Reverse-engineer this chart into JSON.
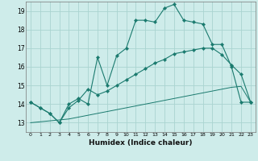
{
  "bg_color": "#ceecea",
  "grid_color": "#aad4d0",
  "line_color": "#1a7a6e",
  "xlabel": "Humidex (Indice chaleur)",
  "xlim": [
    -0.5,
    23.5
  ],
  "ylim": [
    12.5,
    19.5
  ],
  "yticks": [
    13,
    14,
    15,
    16,
    17,
    18,
    19
  ],
  "xticks": [
    0,
    1,
    2,
    3,
    4,
    5,
    6,
    7,
    8,
    9,
    10,
    11,
    12,
    13,
    14,
    15,
    16,
    17,
    18,
    19,
    20,
    21,
    22,
    23
  ],
  "series1_x": [
    0,
    1,
    2,
    3,
    4,
    5,
    6,
    7,
    8,
    9,
    10,
    11,
    12,
    13,
    14,
    15,
    16,
    17,
    18,
    19,
    20,
    21,
    22,
    23
  ],
  "series1_y": [
    14.1,
    13.8,
    13.5,
    13.0,
    14.0,
    14.3,
    14.0,
    16.5,
    15.0,
    16.6,
    17.0,
    18.5,
    18.5,
    18.4,
    19.15,
    19.35,
    18.5,
    18.4,
    18.3,
    17.2,
    17.2,
    16.0,
    14.1,
    14.1
  ],
  "series2_x": [
    0,
    1,
    2,
    3,
    4,
    5,
    6,
    7,
    8,
    9,
    10,
    11,
    12,
    13,
    14,
    15,
    16,
    17,
    18,
    19,
    20,
    21,
    22,
    23
  ],
  "series2_y": [
    14.1,
    13.8,
    13.5,
    13.0,
    13.8,
    14.2,
    14.8,
    14.5,
    14.7,
    15.0,
    15.3,
    15.6,
    15.9,
    16.2,
    16.4,
    16.7,
    16.8,
    16.9,
    17.0,
    17.0,
    16.65,
    16.1,
    15.6,
    14.1
  ],
  "series3_x": [
    0,
    1,
    2,
    3,
    4,
    5,
    6,
    7,
    8,
    9,
    10,
    11,
    12,
    13,
    14,
    15,
    16,
    17,
    18,
    19,
    20,
    21,
    22,
    23
  ],
  "series3_y": [
    13.0,
    13.05,
    13.1,
    13.15,
    13.2,
    13.3,
    13.4,
    13.5,
    13.6,
    13.7,
    13.8,
    13.9,
    14.0,
    14.1,
    14.2,
    14.3,
    14.4,
    14.5,
    14.6,
    14.7,
    14.8,
    14.9,
    14.95,
    14.1
  ]
}
